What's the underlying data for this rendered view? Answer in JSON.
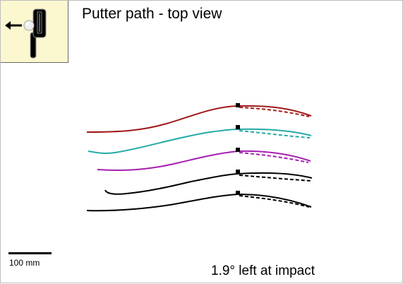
{
  "header": {
    "title": "Putter path - top view",
    "thumbnail_icon": "putter-with-ball-and-left-arrow"
  },
  "scale": {
    "label": "100 mm"
  },
  "footer": {
    "result_text": "1.9° left at impact"
  },
  "paths": [
    {
      "color": "#18189a",
      "style": "solid-backstroke-dashed-followthrough"
    },
    {
      "color": "#1fa51f",
      "style": "solid-backstroke-dashed-followthrough"
    },
    {
      "color": "#a01818",
      "style": "solid-backstroke-dashed-followthrough"
    },
    {
      "color": "#23aaa6",
      "style": "solid-backstroke-dashed-followthrough"
    },
    {
      "color": "#a61fb0",
      "style": "solid-backstroke-dashed-followthrough"
    }
  ],
  "impact_marker_color": "#000000"
}
